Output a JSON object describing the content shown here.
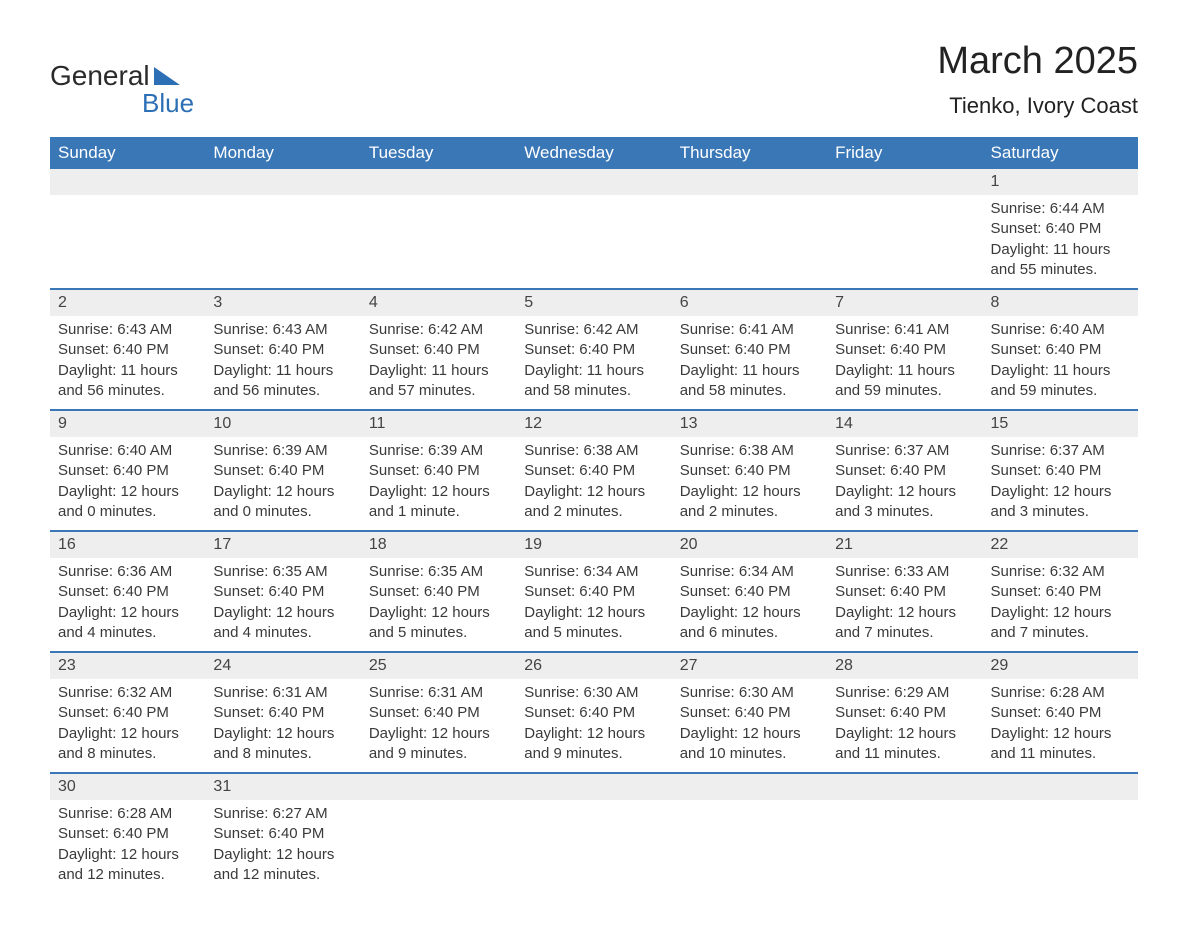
{
  "logo": {
    "line1": "General",
    "line2": "Blue"
  },
  "title": "March 2025",
  "location": "Tienko, Ivory Coast",
  "colors": {
    "header_bg": "#3a77b7",
    "header_fg": "#ffffff",
    "daynum_bg": "#eeeeee",
    "border": "#3a77b7",
    "logo_accent": "#2d6fb5"
  },
  "weekdays": [
    "Sunday",
    "Monday",
    "Tuesday",
    "Wednesday",
    "Thursday",
    "Friday",
    "Saturday"
  ],
  "weeks": [
    [
      {
        "blank": true
      },
      {
        "blank": true
      },
      {
        "blank": true
      },
      {
        "blank": true
      },
      {
        "blank": true
      },
      {
        "blank": true
      },
      {
        "n": "1",
        "l1": "Sunrise: 6:44 AM",
        "l2": "Sunset: 6:40 PM",
        "l3": "Daylight: 11 hours",
        "l4": "and 55 minutes."
      }
    ],
    [
      {
        "n": "2",
        "l1": "Sunrise: 6:43 AM",
        "l2": "Sunset: 6:40 PM",
        "l3": "Daylight: 11 hours",
        "l4": "and 56 minutes."
      },
      {
        "n": "3",
        "l1": "Sunrise: 6:43 AM",
        "l2": "Sunset: 6:40 PM",
        "l3": "Daylight: 11 hours",
        "l4": "and 56 minutes."
      },
      {
        "n": "4",
        "l1": "Sunrise: 6:42 AM",
        "l2": "Sunset: 6:40 PM",
        "l3": "Daylight: 11 hours",
        "l4": "and 57 minutes."
      },
      {
        "n": "5",
        "l1": "Sunrise: 6:42 AM",
        "l2": "Sunset: 6:40 PM",
        "l3": "Daylight: 11 hours",
        "l4": "and 58 minutes."
      },
      {
        "n": "6",
        "l1": "Sunrise: 6:41 AM",
        "l2": "Sunset: 6:40 PM",
        "l3": "Daylight: 11 hours",
        "l4": "and 58 minutes."
      },
      {
        "n": "7",
        "l1": "Sunrise: 6:41 AM",
        "l2": "Sunset: 6:40 PM",
        "l3": "Daylight: 11 hours",
        "l4": "and 59 minutes."
      },
      {
        "n": "8",
        "l1": "Sunrise: 6:40 AM",
        "l2": "Sunset: 6:40 PM",
        "l3": "Daylight: 11 hours",
        "l4": "and 59 minutes."
      }
    ],
    [
      {
        "n": "9",
        "l1": "Sunrise: 6:40 AM",
        "l2": "Sunset: 6:40 PM",
        "l3": "Daylight: 12 hours",
        "l4": "and 0 minutes."
      },
      {
        "n": "10",
        "l1": "Sunrise: 6:39 AM",
        "l2": "Sunset: 6:40 PM",
        "l3": "Daylight: 12 hours",
        "l4": "and 0 minutes."
      },
      {
        "n": "11",
        "l1": "Sunrise: 6:39 AM",
        "l2": "Sunset: 6:40 PM",
        "l3": "Daylight: 12 hours",
        "l4": "and 1 minute."
      },
      {
        "n": "12",
        "l1": "Sunrise: 6:38 AM",
        "l2": "Sunset: 6:40 PM",
        "l3": "Daylight: 12 hours",
        "l4": "and 2 minutes."
      },
      {
        "n": "13",
        "l1": "Sunrise: 6:38 AM",
        "l2": "Sunset: 6:40 PM",
        "l3": "Daylight: 12 hours",
        "l4": "and 2 minutes."
      },
      {
        "n": "14",
        "l1": "Sunrise: 6:37 AM",
        "l2": "Sunset: 6:40 PM",
        "l3": "Daylight: 12 hours",
        "l4": "and 3 minutes."
      },
      {
        "n": "15",
        "l1": "Sunrise: 6:37 AM",
        "l2": "Sunset: 6:40 PM",
        "l3": "Daylight: 12 hours",
        "l4": "and 3 minutes."
      }
    ],
    [
      {
        "n": "16",
        "l1": "Sunrise: 6:36 AM",
        "l2": "Sunset: 6:40 PM",
        "l3": "Daylight: 12 hours",
        "l4": "and 4 minutes."
      },
      {
        "n": "17",
        "l1": "Sunrise: 6:35 AM",
        "l2": "Sunset: 6:40 PM",
        "l3": "Daylight: 12 hours",
        "l4": "and 4 minutes."
      },
      {
        "n": "18",
        "l1": "Sunrise: 6:35 AM",
        "l2": "Sunset: 6:40 PM",
        "l3": "Daylight: 12 hours",
        "l4": "and 5 minutes."
      },
      {
        "n": "19",
        "l1": "Sunrise: 6:34 AM",
        "l2": "Sunset: 6:40 PM",
        "l3": "Daylight: 12 hours",
        "l4": "and 5 minutes."
      },
      {
        "n": "20",
        "l1": "Sunrise: 6:34 AM",
        "l2": "Sunset: 6:40 PM",
        "l3": "Daylight: 12 hours",
        "l4": "and 6 minutes."
      },
      {
        "n": "21",
        "l1": "Sunrise: 6:33 AM",
        "l2": "Sunset: 6:40 PM",
        "l3": "Daylight: 12 hours",
        "l4": "and 7 minutes."
      },
      {
        "n": "22",
        "l1": "Sunrise: 6:32 AM",
        "l2": "Sunset: 6:40 PM",
        "l3": "Daylight: 12 hours",
        "l4": "and 7 minutes."
      }
    ],
    [
      {
        "n": "23",
        "l1": "Sunrise: 6:32 AM",
        "l2": "Sunset: 6:40 PM",
        "l3": "Daylight: 12 hours",
        "l4": "and 8 minutes."
      },
      {
        "n": "24",
        "l1": "Sunrise: 6:31 AM",
        "l2": "Sunset: 6:40 PM",
        "l3": "Daylight: 12 hours",
        "l4": "and 8 minutes."
      },
      {
        "n": "25",
        "l1": "Sunrise: 6:31 AM",
        "l2": "Sunset: 6:40 PM",
        "l3": "Daylight: 12 hours",
        "l4": "and 9 minutes."
      },
      {
        "n": "26",
        "l1": "Sunrise: 6:30 AM",
        "l2": "Sunset: 6:40 PM",
        "l3": "Daylight: 12 hours",
        "l4": "and 9 minutes."
      },
      {
        "n": "27",
        "l1": "Sunrise: 6:30 AM",
        "l2": "Sunset: 6:40 PM",
        "l3": "Daylight: 12 hours",
        "l4": "and 10 minutes."
      },
      {
        "n": "28",
        "l1": "Sunrise: 6:29 AM",
        "l2": "Sunset: 6:40 PM",
        "l3": "Daylight: 12 hours",
        "l4": "and 11 minutes."
      },
      {
        "n": "29",
        "l1": "Sunrise: 6:28 AM",
        "l2": "Sunset: 6:40 PM",
        "l3": "Daylight: 12 hours",
        "l4": "and 11 minutes."
      }
    ],
    [
      {
        "n": "30",
        "l1": "Sunrise: 6:28 AM",
        "l2": "Sunset: 6:40 PM",
        "l3": "Daylight: 12 hours",
        "l4": "and 12 minutes."
      },
      {
        "n": "31",
        "l1": "Sunrise: 6:27 AM",
        "l2": "Sunset: 6:40 PM",
        "l3": "Daylight: 12 hours",
        "l4": "and 12 minutes."
      },
      {
        "blank": true
      },
      {
        "blank": true
      },
      {
        "blank": true
      },
      {
        "blank": true
      },
      {
        "blank": true
      }
    ]
  ]
}
